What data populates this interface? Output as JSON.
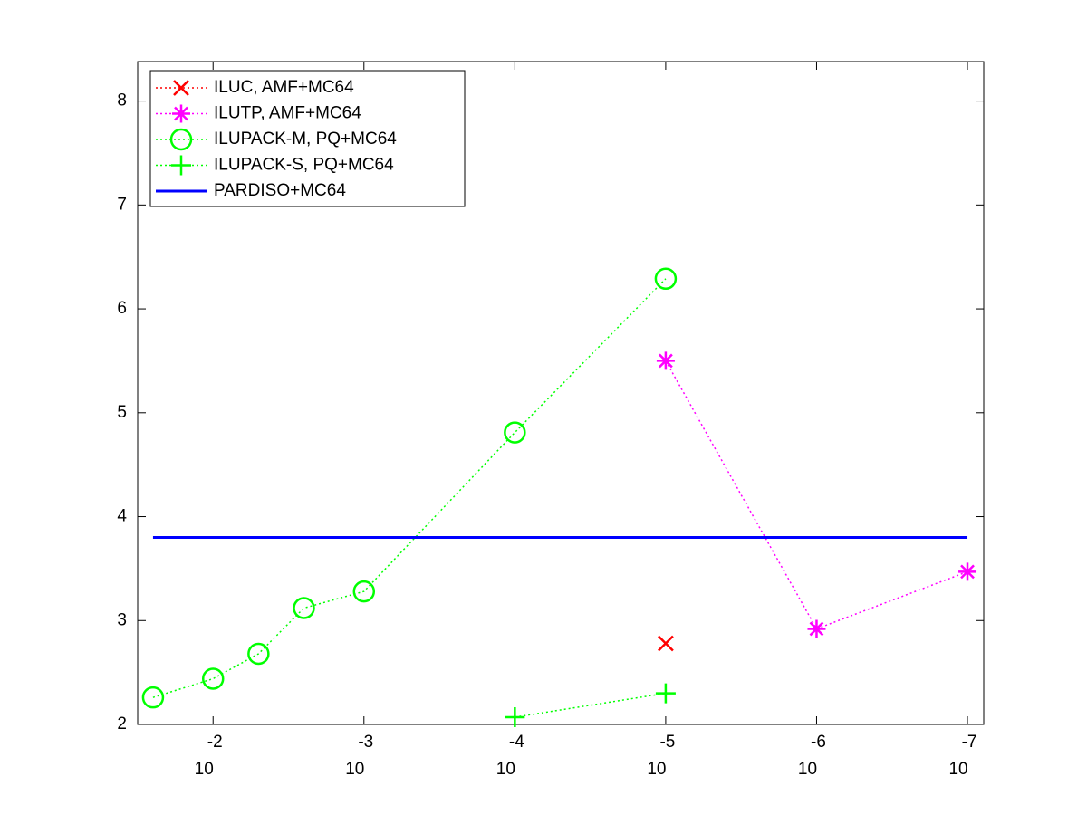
{
  "chart_data": {
    "type": "line",
    "xscale": "log",
    "legend": "northwest",
    "box": true,
    "xlim": [
      0.0316,
      7.8e-08
    ],
    "ylim": [
      2,
      8.38
    ],
    "xticks": [
      {
        "value": 0.01,
        "label": "10",
        "exponent": "-2"
      },
      {
        "value": 0.001,
        "label": "10",
        "exponent": "-3"
      },
      {
        "value": 0.0001,
        "label": "10",
        "exponent": "-4"
      },
      {
        "value": 1e-05,
        "label": "10",
        "exponent": "-5"
      },
      {
        "value": 1e-06,
        "label": "10",
        "exponent": "-6"
      },
      {
        "value": 1e-07,
        "label": "10",
        "exponent": "-7"
      }
    ],
    "yticks": [
      2,
      3,
      4,
      5,
      6,
      7,
      8
    ],
    "series": [
      {
        "name": "ILUC, AMF+MC64",
        "color": "#ff0000",
        "marker": "x",
        "linestyle": "dotted",
        "x": [
          1e-05
        ],
        "values": [
          2.78
        ]
      },
      {
        "name": "ILUTP, AMF+MC64",
        "color": "#ff00ff",
        "marker": "*",
        "linestyle": "dotted",
        "x": [
          1e-05,
          1e-06,
          1e-07
        ],
        "values": [
          5.5,
          2.92,
          3.47
        ]
      },
      {
        "name": "ILUPACK-M, PQ+MC64",
        "color": "#00ff00",
        "marker": "o",
        "linestyle": "dotted",
        "x": [
          0.025,
          0.01,
          0.005,
          0.0025,
          0.001,
          0.0001,
          1e-05
        ],
        "values": [
          2.26,
          2.44,
          2.68,
          3.12,
          3.28,
          4.81,
          6.29
        ]
      },
      {
        "name": "ILUPACK-S, PQ+MC64",
        "color": "#00ff00",
        "marker": "+",
        "linestyle": "dotted",
        "x": [
          0.0001,
          1e-05
        ],
        "values": [
          2.07,
          2.3
        ]
      },
      {
        "name": "PARDISO+MC64",
        "color": "#0000ff",
        "marker": null,
        "linestyle": "solid",
        "x": [
          0.025,
          1e-07
        ],
        "values": [
          3.8,
          3.8
        ]
      }
    ]
  }
}
